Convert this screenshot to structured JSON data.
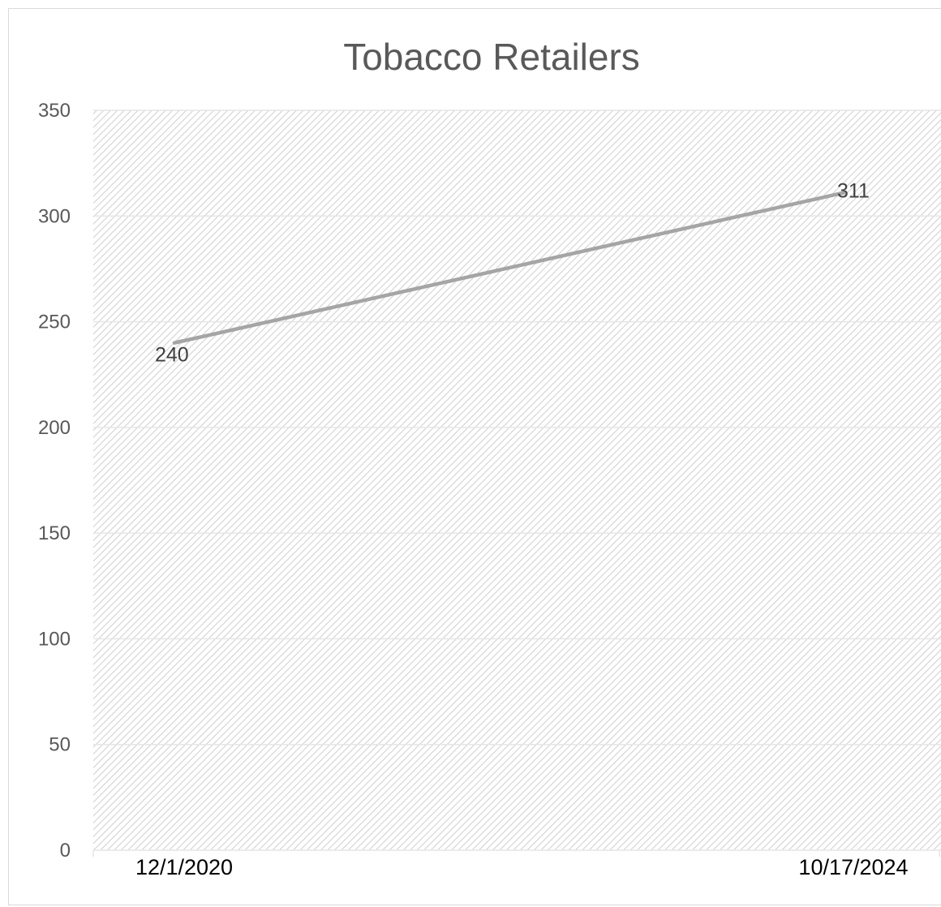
{
  "chart_data": {
    "type": "line",
    "title": "Tobacco Retailers",
    "xlabel": "",
    "ylabel": "",
    "categories": [
      "12/1/2020",
      "10/17/2024"
    ],
    "series": [
      {
        "values": [
          240,
          311
        ],
        "data_labels": [
          "240",
          "311"
        ]
      }
    ],
    "ylim": [
      0,
      350
    ],
    "yticks": [
      0,
      50,
      100,
      150,
      200,
      250,
      300,
      350
    ],
    "grid": true,
    "legend": "none",
    "colors": {
      "line": "#a5a5a5",
      "gridline": "#e6e6e6",
      "plot_hatch": "#d4d4d4",
      "title": "#595959",
      "axis_text": "#595959"
    }
  }
}
